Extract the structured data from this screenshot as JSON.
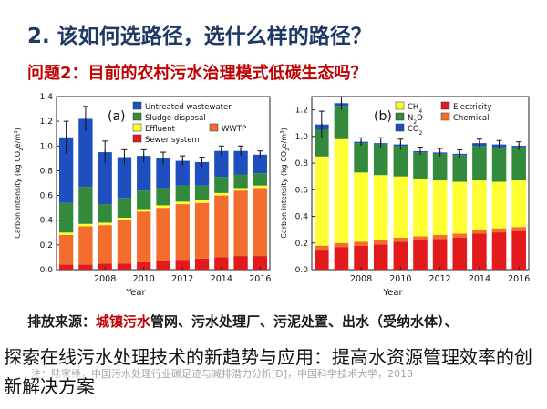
{
  "slide": {
    "title": "2. 该如何选路径，选什么样的路径？",
    "question": "问题2：目前的农村污水治理模式低碳生态吗？",
    "source_label": "排放来源：",
    "source_highlight": "城镇污水",
    "source_rest": "管网、污水处理厂、污泥处置、出水（受纳水体）、",
    "note": "注：陆家缘，中国污水处理行业碳足迹与减排潜力分析[D]，中国科学技术大学，2018",
    "overlay_text": "探索在线污水处理技术的新趋势与应用：提高水资源管理效率的创新解决方案"
  },
  "chart_data": [
    {
      "type": "bar",
      "stacked": true,
      "panel_label": "(a)",
      "xlabel": "Year",
      "ylabel": "Carbon intensity (kg CO2e/m3)",
      "ylim": [
        0,
        1.4
      ],
      "yticks": [
        0.0,
        0.2,
        0.4,
        0.6,
        0.8,
        1.0,
        1.2,
        1.4
      ],
      "tick_labels_y": [
        "0.0",
        "0.2",
        "0.4",
        "0.6",
        "0.8",
        "1.0",
        "1.2",
        "1.4"
      ],
      "tick_labels_x": [
        "2008",
        "2010",
        "2012",
        "2014",
        "2016"
      ],
      "categories": [
        "2006",
        "2007",
        "2008",
        "2009",
        "2010",
        "2011",
        "2012",
        "2013",
        "2014",
        "2015",
        "2016"
      ],
      "legend_position": "top",
      "series": [
        {
          "name": "Sewer system",
          "color": "#e31a1c",
          "values": [
            0.04,
            0.04,
            0.05,
            0.05,
            0.06,
            0.07,
            0.08,
            0.09,
            0.1,
            0.11,
            0.11
          ]
        },
        {
          "name": "WWTP",
          "color": "#f26d2e",
          "values": [
            0.24,
            0.31,
            0.31,
            0.35,
            0.41,
            0.43,
            0.45,
            0.45,
            0.5,
            0.53,
            0.55
          ]
        },
        {
          "name": "Effluent",
          "color": "#ffff33",
          "values": [
            0.02,
            0.02,
            0.02,
            0.02,
            0.02,
            0.02,
            0.02,
            0.02,
            0.02,
            0.02,
            0.02
          ]
        },
        {
          "name": "Sludge disposal",
          "color": "#338a3c",
          "values": [
            0.24,
            0.3,
            0.15,
            0.16,
            0.15,
            0.14,
            0.13,
            0.12,
            0.13,
            0.11,
            0.1
          ]
        },
        {
          "name": "Untreated wastewater",
          "color": "#1f4fbf",
          "values": [
            0.53,
            0.55,
            0.42,
            0.33,
            0.28,
            0.24,
            0.2,
            0.19,
            0.21,
            0.19,
            0.15
          ]
        }
      ],
      "error_bars_total": [
        0.13,
        0.1,
        0.09,
        0.06,
        0.05,
        0.05,
        0.04,
        0.04,
        0.04,
        0.04,
        0.03
      ]
    },
    {
      "type": "bar",
      "stacked": true,
      "panel_label": "(b)",
      "xlabel": "Year",
      "ylabel": "Carbon intensity (kg CO2e/m3)",
      "ylim": [
        0,
        1.3
      ],
      "yticks": [
        0.0,
        0.2,
        0.4,
        0.6,
        0.8,
        1.0,
        1.2
      ],
      "tick_labels_y": [
        "0.0",
        "0.2",
        "0.4",
        "0.6",
        "0.8",
        "1.0",
        "1.2"
      ],
      "tick_labels_x": [
        "2008",
        "2010",
        "2012",
        "2014",
        "2016"
      ],
      "categories": [
        "2006",
        "2007",
        "2008",
        "2009",
        "2010",
        "2011",
        "2012",
        "2013",
        "2014",
        "2015",
        "2016"
      ],
      "legend_position": "top",
      "legend_left": [
        "CH4",
        "N2O",
        "CO2"
      ],
      "legend_right": [
        "Electricity",
        "Chemical"
      ],
      "series": [
        {
          "name": "Electricity",
          "color": "#e31a1c",
          "values": [
            0.15,
            0.17,
            0.18,
            0.19,
            0.21,
            0.22,
            0.23,
            0.24,
            0.27,
            0.28,
            0.29
          ]
        },
        {
          "name": "Chemical",
          "color": "#f26d2e",
          "values": [
            0.03,
            0.03,
            0.03,
            0.03,
            0.03,
            0.03,
            0.03,
            0.03,
            0.03,
            0.03,
            0.03
          ]
        },
        {
          "name": "CH4",
          "color": "#ffff33",
          "values": [
            0.67,
            0.78,
            0.52,
            0.49,
            0.46,
            0.43,
            0.41,
            0.39,
            0.37,
            0.35,
            0.35
          ]
        },
        {
          "name": "N2O",
          "color": "#338a3c",
          "values": [
            0.2,
            0.25,
            0.22,
            0.23,
            0.23,
            0.2,
            0.2,
            0.2,
            0.26,
            0.26,
            0.25
          ]
        },
        {
          "name": "CO2",
          "color": "#1f4fbf",
          "values": [
            0.04,
            0.02,
            0.01,
            0.01,
            0.01,
            0.01,
            0.01,
            0.01,
            0.02,
            0.02,
            0.01
          ]
        }
      ],
      "error_bars_total": [
        0.1,
        0.05,
        0.03,
        0.04,
        0.04,
        0.03,
        0.03,
        0.03,
        0.03,
        0.03,
        0.03
      ]
    }
  ]
}
